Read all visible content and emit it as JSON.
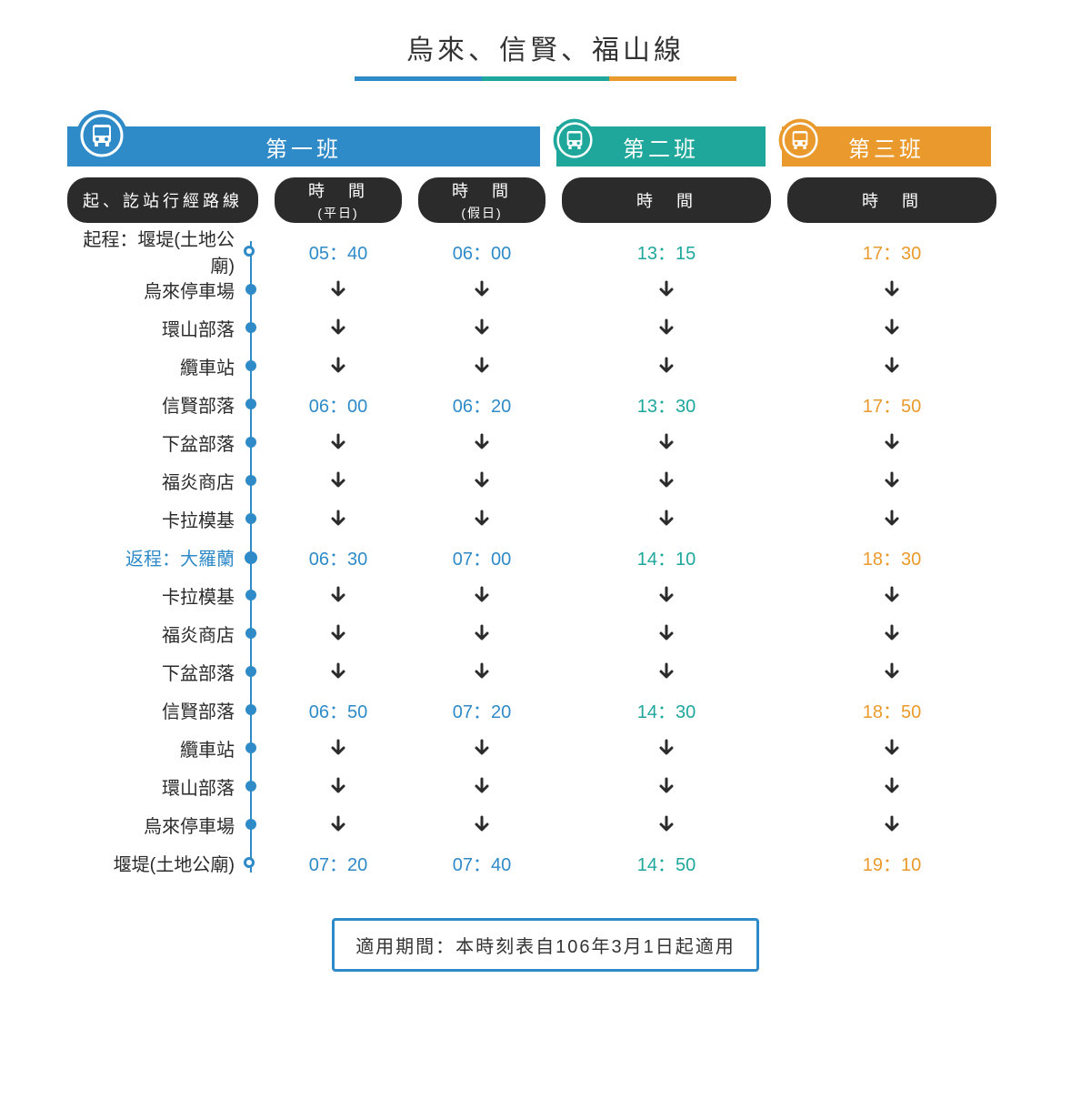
{
  "title": "烏來、信賢、福山線",
  "underline_colors": [
    "#2f8ac8",
    "#1fa79c",
    "#ea9a2c"
  ],
  "tabs": {
    "t1": {
      "label": "第一班",
      "color": "#2f8ac8"
    },
    "t2": {
      "label": "第二班",
      "color": "#1fa79c"
    },
    "t3": {
      "label": "第三班",
      "color": "#ea9a2c"
    }
  },
  "headers": {
    "route": "起、訖站行經路線",
    "t1a": "時　間",
    "t1a_sub": "(平日)",
    "t1b": "時　間",
    "t1b_sub": "(假日)",
    "t2": "時　間",
    "t3": "時　間"
  },
  "time_colors": {
    "t1": "#2f8ac8",
    "t2": "#1fa79c",
    "t3": "#ea9a2c",
    "arrow": "#2b2b2b"
  },
  "stops": [
    {
      "name": "起程：堰堤(土地公廟)",
      "highlight": false,
      "endpoint": "hollow",
      "t1a": "05：40",
      "t1b": "06：00",
      "t2": "13：15",
      "t3": "17：30"
    },
    {
      "name": "烏來停車場",
      "highlight": false,
      "endpoint": "dot",
      "t1a": "↓",
      "t1b": "↓",
      "t2": "↓",
      "t3": "↓"
    },
    {
      "name": "環山部落",
      "highlight": false,
      "endpoint": "dot",
      "t1a": "↓",
      "t1b": "↓",
      "t2": "↓",
      "t3": "↓"
    },
    {
      "name": "纜車站",
      "highlight": false,
      "endpoint": "dot",
      "t1a": "↓",
      "t1b": "↓",
      "t2": "↓",
      "t3": "↓"
    },
    {
      "name": "信賢部落",
      "highlight": false,
      "endpoint": "dot",
      "t1a": "06：00",
      "t1b": "06：20",
      "t2": "13：30",
      "t3": "17：50"
    },
    {
      "name": "下盆部落",
      "highlight": false,
      "endpoint": "dot",
      "t1a": "↓",
      "t1b": "↓",
      "t2": "↓",
      "t3": "↓"
    },
    {
      "name": "福炎商店",
      "highlight": false,
      "endpoint": "dot",
      "t1a": "↓",
      "t1b": "↓",
      "t2": "↓",
      "t3": "↓"
    },
    {
      "name": "卡拉模基",
      "highlight": false,
      "endpoint": "dot",
      "t1a": "↓",
      "t1b": "↓",
      "t2": "↓",
      "t3": "↓"
    },
    {
      "name": "返程：大羅蘭",
      "highlight": true,
      "endpoint": "big",
      "t1a": "06：30",
      "t1b": "07：00",
      "t2": "14：10",
      "t3": "18：30"
    },
    {
      "name": "卡拉模基",
      "highlight": false,
      "endpoint": "dot",
      "t1a": "↓",
      "t1b": "↓",
      "t2": "↓",
      "t3": "↓"
    },
    {
      "name": "福炎商店",
      "highlight": false,
      "endpoint": "dot",
      "t1a": "↓",
      "t1b": "↓",
      "t2": "↓",
      "t3": "↓"
    },
    {
      "name": "下盆部落",
      "highlight": false,
      "endpoint": "dot",
      "t1a": "↓",
      "t1b": "↓",
      "t2": "↓",
      "t3": "↓"
    },
    {
      "name": "信賢部落",
      "highlight": false,
      "endpoint": "dot",
      "t1a": "06：50",
      "t1b": "07：20",
      "t2": "14：30",
      "t3": "18：50"
    },
    {
      "name": "纜車站",
      "highlight": false,
      "endpoint": "dot",
      "t1a": "↓",
      "t1b": "↓",
      "t2": "↓",
      "t3": "↓"
    },
    {
      "name": "環山部落",
      "highlight": false,
      "endpoint": "dot",
      "t1a": "↓",
      "t1b": "↓",
      "t2": "↓",
      "t3": "↓"
    },
    {
      "name": "烏來停車場",
      "highlight": false,
      "endpoint": "dot",
      "t1a": "↓",
      "t1b": "↓",
      "t2": "↓",
      "t3": "↓"
    },
    {
      "name": "堰堤(土地公廟)",
      "highlight": false,
      "endpoint": "hollow",
      "t1a": "07：20",
      "t1b": "07：40",
      "t2": "14：50",
      "t3": "19：10"
    }
  ],
  "footer": "適用期間：本時刻表自106年3月1日起適用"
}
